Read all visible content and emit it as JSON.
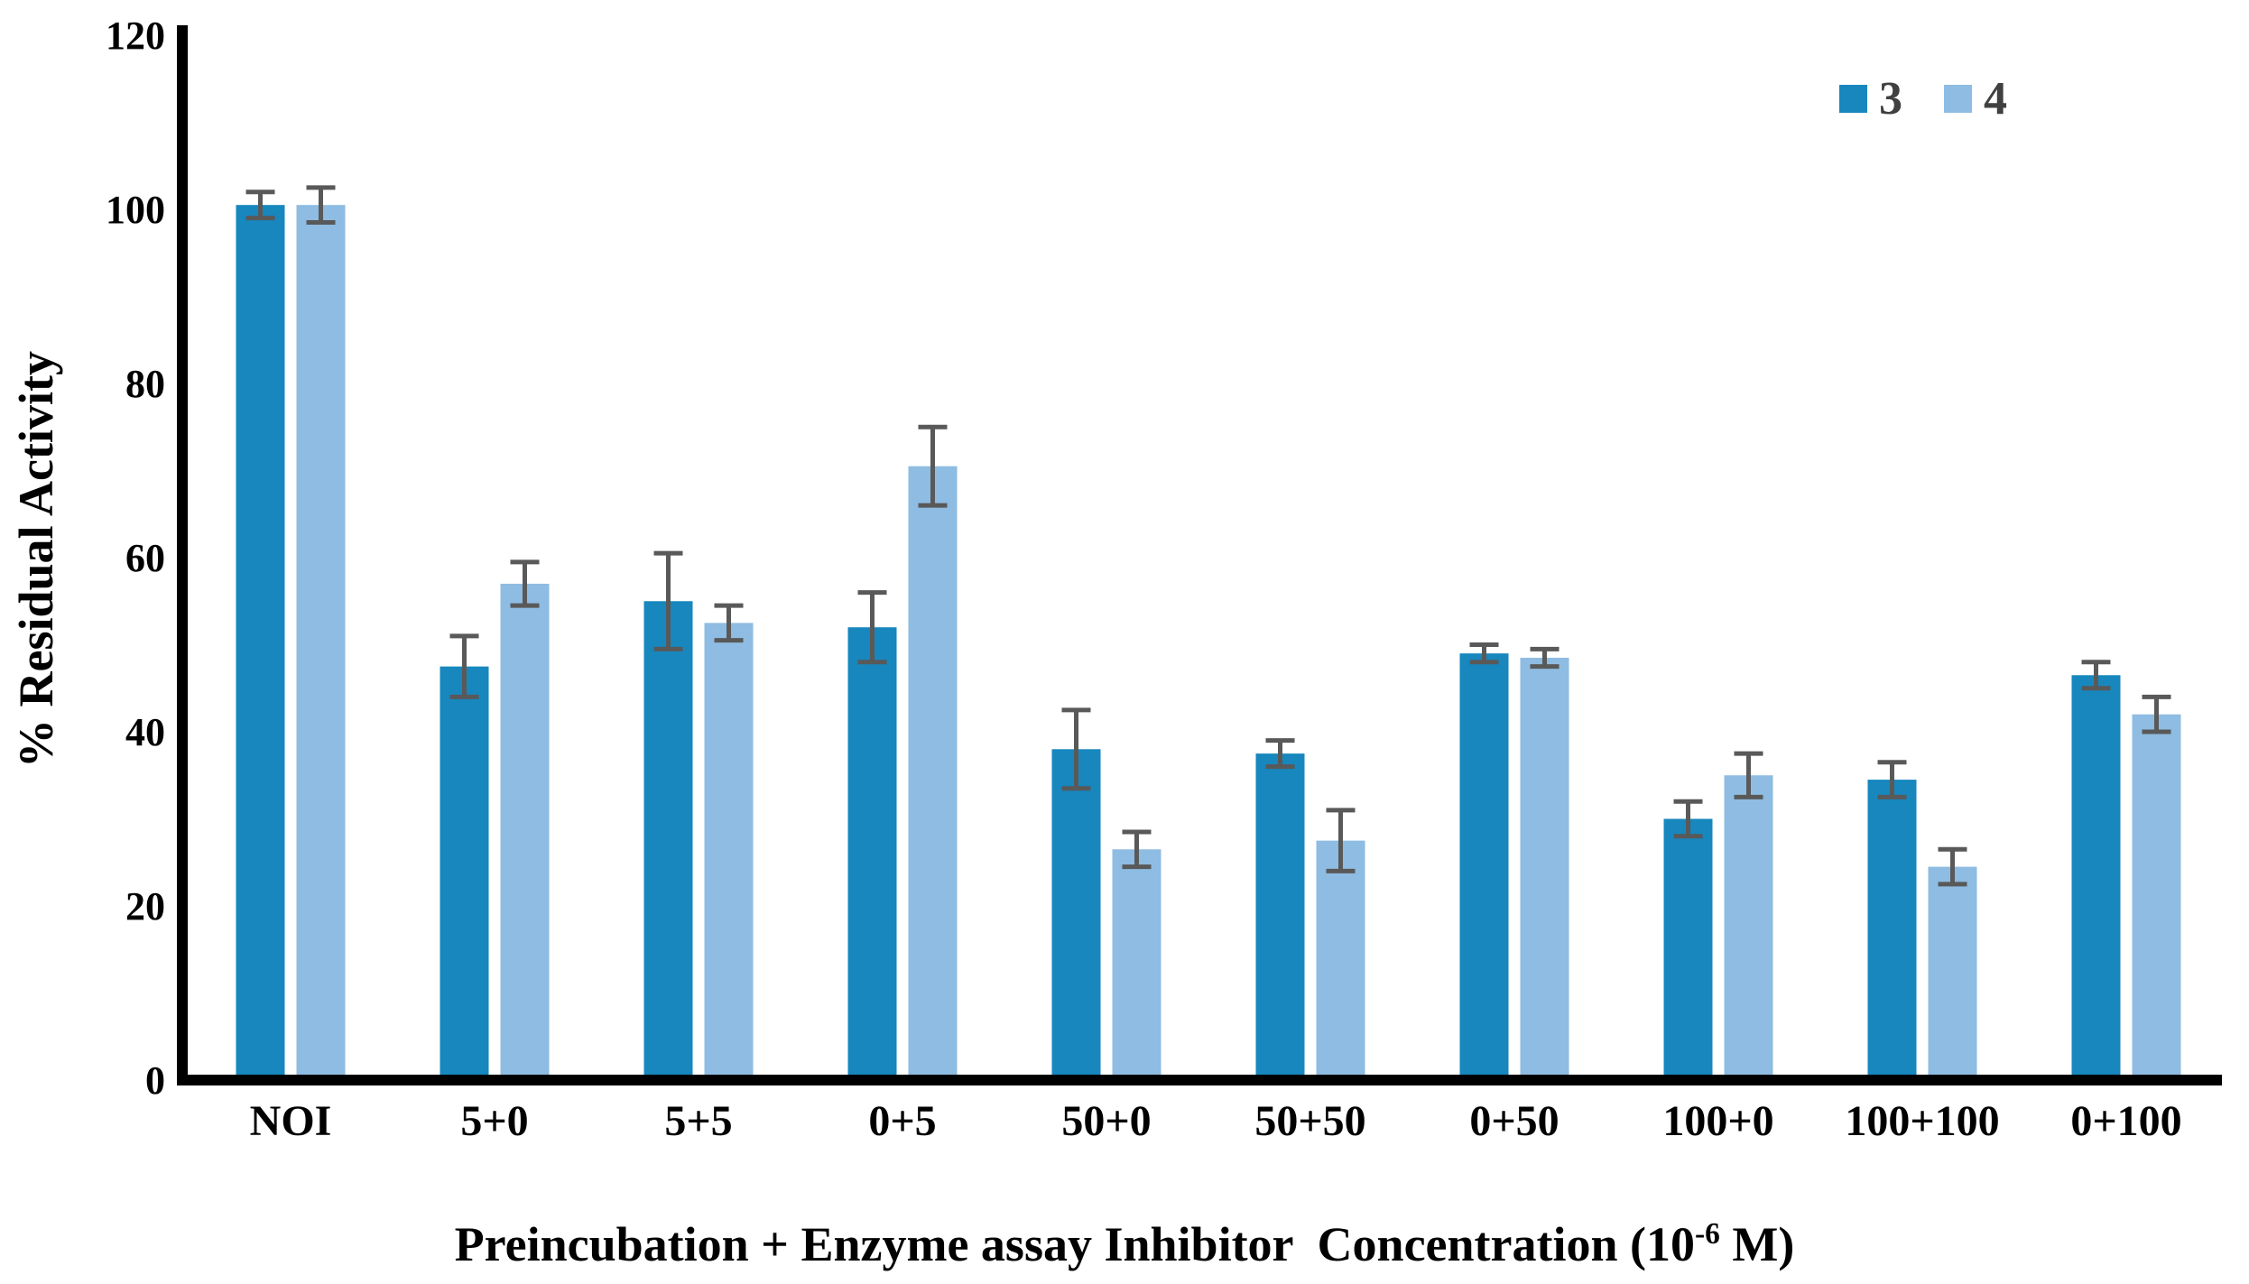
{
  "chart_data": {
    "type": "bar",
    "title": "",
    "categories": [
      "NOI",
      "5+0",
      "5+5",
      "0+5",
      "50+0",
      "50+50",
      "0+50",
      "100+0",
      "100+100",
      "0+100"
    ],
    "series": [
      {
        "name": "3",
        "color": "#1787BE",
        "values": [
          100.5,
          47.5,
          55,
          52,
          38,
          37.5,
          49,
          30,
          34.5,
          46.5
        ],
        "errors": [
          1.5,
          3.5,
          5.5,
          4,
          4.5,
          1.5,
          1,
          2,
          2,
          1.5
        ]
      },
      {
        "name": "4",
        "color": "#8EBCE2",
        "values": [
          100.5,
          57,
          52.5,
          70.5,
          26.5,
          27.5,
          48.5,
          35,
          24.5,
          42
        ],
        "errors": [
          2,
          2.5,
          2,
          4.5,
          2,
          3.5,
          1,
          2.5,
          2,
          2
        ]
      }
    ],
    "error_bars": true,
    "error_color": "#595959",
    "axis_color": "#000000",
    "ylabel": "% Residual Activity",
    "xlabel": {
      "base": "Preincubation + Enzyme assay Inhibitor  Concentration (10",
      "sup": "-6",
      "end": " M)"
    },
    "ylim": [
      0,
      120
    ],
    "yticks": [
      0,
      20,
      40,
      60,
      80,
      100,
      120
    ],
    "grid": false,
    "legend_position": "top-right"
  }
}
